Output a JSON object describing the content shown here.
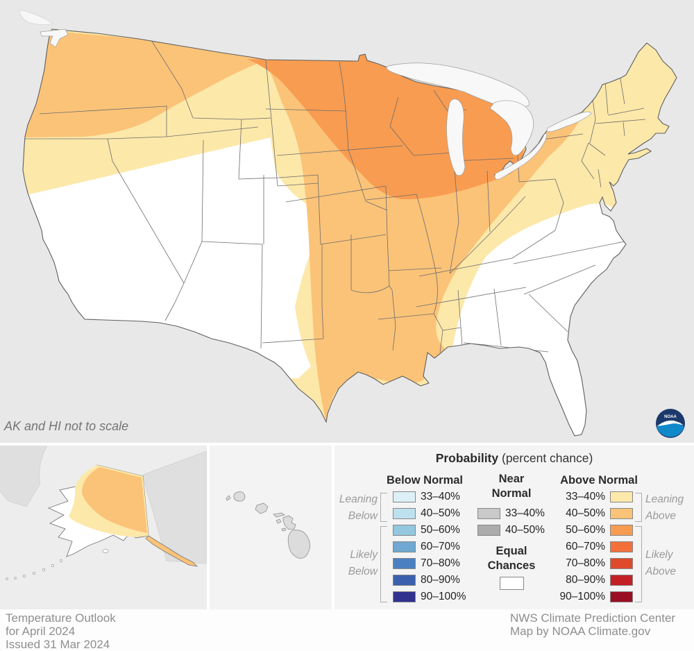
{
  "map": {
    "note": "AK and HI not to scale",
    "logo_text": "NOAA"
  },
  "legend": {
    "title": "Probability",
    "title_suffix": " (percent chance)",
    "below": {
      "header": "Below Normal",
      "rows": [
        {
          "range": "33–40%",
          "color": "#DDF0F8"
        },
        {
          "range": "40–50%",
          "color": "#BEE1EF"
        },
        {
          "range": "50–60%",
          "color": "#94C7E0"
        },
        {
          "range": "60–70%",
          "color": "#6FA8D2"
        },
        {
          "range": "70–80%",
          "color": "#4A80C1"
        },
        {
          "range": "80–90%",
          "color": "#3B60AE"
        },
        {
          "range": "90–100%",
          "color": "#313190"
        }
      ]
    },
    "near": {
      "header_line1": "Near",
      "header_line2": "Normal",
      "rows": [
        {
          "range": "33–40%",
          "color": "#C9C9C9"
        },
        {
          "range": "40–50%",
          "color": "#ACACAC"
        }
      ],
      "equal_line1": "Equal",
      "equal_line2": "Chances",
      "equal_color": "#FFFFFF"
    },
    "above": {
      "header": "Above Normal",
      "rows": [
        {
          "range": "33–40%",
          "color": "#FCE8A9"
        },
        {
          "range": "40–50%",
          "color": "#FBC378"
        },
        {
          "range": "50–60%",
          "color": "#F89C51"
        },
        {
          "range": "60–70%",
          "color": "#F3703B"
        },
        {
          "range": "70–80%",
          "color": "#DF4A2B"
        },
        {
          "range": "80–90%",
          "color": "#C32026"
        },
        {
          "range": "90–100%",
          "color": "#9A0E23"
        }
      ]
    },
    "side": {
      "leaning_below": [
        "Leaning",
        "Below"
      ],
      "likely_below": [
        "Likely",
        "Below"
      ],
      "leaning_above": [
        "Leaning",
        "Above"
      ],
      "likely_above": [
        "Likely",
        "Above"
      ]
    }
  },
  "footer": {
    "left_lines": [
      "Temperature Outlook",
      "for April 2024",
      "Issued 31 Mar 2024"
    ],
    "right_lines": [
      "NWS Climate Prediction Center",
      "Map by NOAA Climate.gov"
    ]
  }
}
